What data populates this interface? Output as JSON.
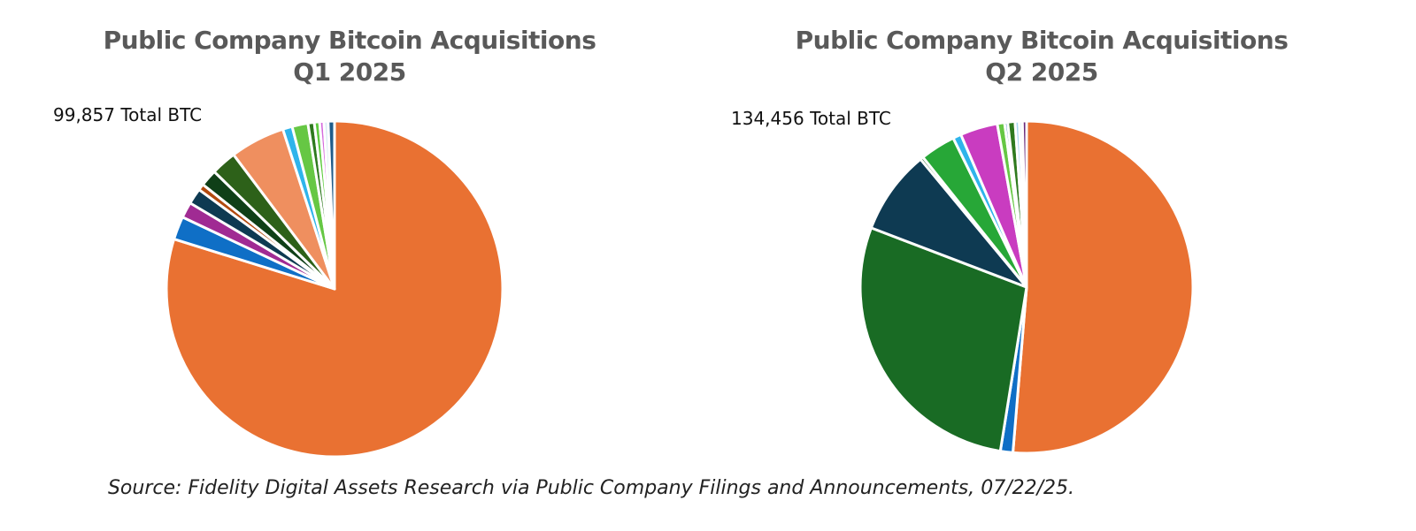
{
  "chart_data": [
    {
      "type": "pie",
      "title": "Public Company Bitcoin Acquisitions",
      "subtitle": "Q1 2025",
      "annotation": "99,857 Total BTC",
      "unit": "share of total BTC (%), estimated",
      "start": "12 o'clock, clockwise",
      "slices": [
        {
          "value": 78.6,
          "color": "#E97132"
        },
        {
          "value": 2.2,
          "color": "#0F6FC6"
        },
        {
          "value": 1.5,
          "color": "#A02B93"
        },
        {
          "value": 1.5,
          "color": "#0E3A52"
        },
        {
          "value": 0.6,
          "color": "#B34A0F"
        },
        {
          "value": 1.6,
          "color": "#0F3F17"
        },
        {
          "value": 2.4,
          "color": "#2D6119"
        },
        {
          "value": 5.2,
          "color": "#EF8F5F"
        },
        {
          "value": 0.9,
          "color": "#2FB4EB"
        },
        {
          "value": 1.5,
          "color": "#66C744"
        },
        {
          "value": 0.6,
          "color": "#2E7A1E"
        },
        {
          "value": 0.5,
          "color": "#5ECB3E"
        },
        {
          "value": 0.4,
          "color": "#D56BDD"
        },
        {
          "value": 0.4,
          "color": "#D9EDF5"
        },
        {
          "value": 0.6,
          "color": "#1F5C8A"
        }
      ]
    },
    {
      "type": "pie",
      "title": "Public Company Bitcoin Acquisitions",
      "subtitle": "Q2 2025",
      "annotation": "134,456 Total BTC",
      "unit": "share of total BTC (%), estimated",
      "start": "12 o'clock, clockwise",
      "slices": [
        {
          "value": 50.8,
          "color": "#E97132"
        },
        {
          "value": 1.2,
          "color": "#0F6FC6"
        },
        {
          "value": 28.0,
          "color": "#196B24"
        },
        {
          "value": 8.1,
          "color": "#0E3A52"
        },
        {
          "value": 0.3,
          "color": "#1E5A1A"
        },
        {
          "value": 3.4,
          "color": "#27A737"
        },
        {
          "value": 0.8,
          "color": "#2FB4EB"
        },
        {
          "value": 3.6,
          "color": "#C93CC0"
        },
        {
          "value": 0.7,
          "color": "#66C744"
        },
        {
          "value": 0.3,
          "color": "#4A90C0"
        },
        {
          "value": 0.7,
          "color": "#2E7A1E"
        },
        {
          "value": 0.4,
          "color": "#A8D8F0"
        },
        {
          "value": 0.3,
          "color": "#CCEAF7"
        },
        {
          "value": 0.4,
          "color": "#6A2A7A"
        }
      ]
    }
  ],
  "source": "Source: Fidelity Digital Assets Research via Public Company Filings and Announcements, 07/22/25."
}
